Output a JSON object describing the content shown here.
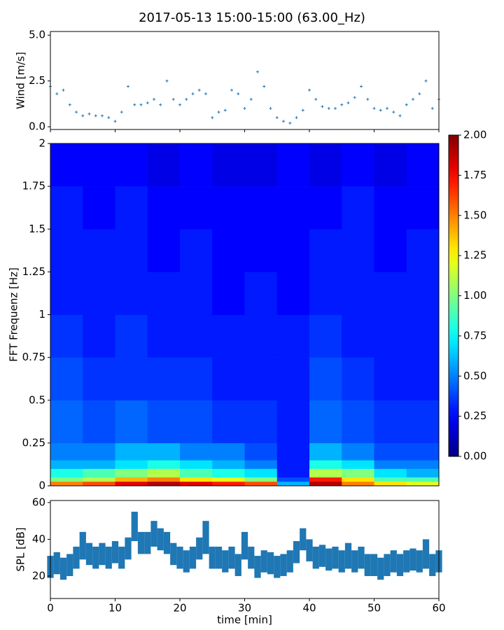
{
  "title": "2017-05-13 15:00-15:00 (63.00_Hz)",
  "chart_data": [
    {
      "type": "scatter",
      "ylabel": "Wind [m/s]",
      "color": "#1f77b4",
      "xlim": [
        0,
        60
      ],
      "ylim": [
        -0.15,
        5.2
      ],
      "yticks": [
        {
          "value": 0,
          "label": "0.0"
        },
        {
          "value": 2.5,
          "label": "2.5"
        },
        {
          "value": 5,
          "label": "5.0"
        }
      ],
      "x": [
        0,
        1,
        2,
        3,
        4,
        5,
        6,
        7,
        8,
        9,
        10,
        11,
        12,
        13,
        14,
        15,
        16,
        17,
        18,
        19,
        20,
        21,
        22,
        23,
        24,
        25,
        26,
        27,
        28,
        29,
        30,
        31,
        32,
        33,
        34,
        35,
        36,
        37,
        38,
        39,
        40,
        41,
        42,
        43,
        44,
        45,
        46,
        47,
        48,
        49,
        50,
        51,
        52,
        53,
        54,
        55,
        56,
        57,
        58,
        59,
        60
      ],
      "values": [
        2.2,
        1.8,
        2.0,
        1.2,
        0.8,
        0.6,
        0.7,
        0.6,
        0.6,
        0.5,
        0.3,
        0.8,
        2.2,
        1.2,
        1.2,
        1.3,
        1.5,
        1.2,
        2.5,
        1.5,
        1.2,
        1.5,
        1.8,
        2.0,
        1.8,
        0.5,
        0.8,
        0.9,
        2.0,
        1.8,
        1.0,
        1.5,
        3.0,
        2.2,
        1.0,
        0.5,
        0.3,
        0.2,
        0.5,
        0.9,
        2.0,
        1.5,
        1.1,
        1.0,
        1.0,
        1.2,
        1.3,
        1.6,
        2.2,
        1.5,
        1.0,
        0.9,
        1.0,
        0.8,
        0.6,
        1.2,
        1.5,
        1.8,
        2.5,
        1.0,
        1.5
      ]
    },
    {
      "type": "heatmap",
      "ylabel": "FFT Frequenz [Hz]",
      "xlim": [
        0,
        60
      ],
      "ylim": [
        0,
        2
      ],
      "yticks": [
        0,
        0.25,
        0.5,
        0.75,
        1,
        1.25,
        1.5,
        1.75,
        2
      ],
      "xbins": [
        0,
        5,
        10,
        15,
        20,
        25,
        30,
        35,
        40,
        45,
        50,
        55,
        60
      ],
      "ybins": [
        0,
        0.025,
        0.05,
        0.1,
        0.15,
        0.25,
        0.5,
        0.75,
        1,
        1.25,
        1.5,
        1.75,
        2
      ],
      "z": [
        [
          1.5,
          1.6,
          1.8,
          1.9,
          1.8,
          1.7,
          1.6,
          0.6,
          1.9,
          1.5,
          1.3,
          1.2
        ],
        [
          1.0,
          1.1,
          1.4,
          1.5,
          1.3,
          1.2,
          1.0,
          0.4,
          1.7,
          1.3,
          0.9,
          0.9
        ],
        [
          0.8,
          0.9,
          1.0,
          1.1,
          0.9,
          0.8,
          0.7,
          0.3,
          1.1,
          1.0,
          0.7,
          0.6
        ],
        [
          0.6,
          0.6,
          0.7,
          0.8,
          0.7,
          0.6,
          0.5,
          0.3,
          0.8,
          0.7,
          0.5,
          0.5
        ],
        [
          0.5,
          0.5,
          0.6,
          0.6,
          0.5,
          0.5,
          0.4,
          0.3,
          0.6,
          0.5,
          0.4,
          0.4
        ],
        [
          0.45,
          0.4,
          0.45,
          0.4,
          0.4,
          0.35,
          0.35,
          0.3,
          0.45,
          0.4,
          0.35,
          0.35
        ],
        [
          0.4,
          0.35,
          0.35,
          0.35,
          0.35,
          0.3,
          0.3,
          0.3,
          0.4,
          0.35,
          0.3,
          0.3
        ],
        [
          0.35,
          0.3,
          0.35,
          0.3,
          0.3,
          0.3,
          0.3,
          0.3,
          0.35,
          0.3,
          0.3,
          0.3
        ],
        [
          0.3,
          0.3,
          0.3,
          0.3,
          0.3,
          0.25,
          0.3,
          0.25,
          0.3,
          0.3,
          0.3,
          0.3
        ],
        [
          0.3,
          0.3,
          0.3,
          0.25,
          0.3,
          0.25,
          0.25,
          0.25,
          0.3,
          0.3,
          0.25,
          0.3
        ],
        [
          0.3,
          0.25,
          0.3,
          0.25,
          0.25,
          0.25,
          0.25,
          0.25,
          0.25,
          0.3,
          0.25,
          0.25
        ],
        [
          0.25,
          0.25,
          0.25,
          0.2,
          0.25,
          0.2,
          0.2,
          0.25,
          0.2,
          0.25,
          0.2,
          0.25
        ]
      ],
      "clim": [
        0,
        2
      ],
      "cticks": [
        {
          "value": 0,
          "label": "0.00"
        },
        {
          "value": 0.25,
          "label": "0.25"
        },
        {
          "value": 0.5,
          "label": "0.50"
        },
        {
          "value": 0.75,
          "label": "0.75"
        },
        {
          "value": 1,
          "label": "1.00"
        },
        {
          "value": 1.25,
          "label": "1.25"
        },
        {
          "value": 1.5,
          "label": "1.50"
        },
        {
          "value": 1.75,
          "label": "1.75"
        },
        {
          "value": 2,
          "label": "2.00"
        }
      ],
      "colormap": "jet"
    },
    {
      "type": "band",
      "ylabel": "SPL [dB]",
      "xlabel": "time [min]",
      "color": "#1f77b4",
      "xlim": [
        0,
        60
      ],
      "xticks": [
        0,
        10,
        20,
        30,
        40,
        50,
        60
      ],
      "ylim": [
        7.8,
        61.1
      ],
      "yticks": [
        20,
        40,
        60
      ],
      "x": [
        0,
        1,
        2,
        3,
        4,
        5,
        6,
        7,
        8,
        9,
        10,
        11,
        12,
        13,
        14,
        15,
        16,
        17,
        18,
        19,
        20,
        21,
        22,
        23,
        24,
        25,
        26,
        27,
        28,
        29,
        30,
        31,
        32,
        33,
        34,
        35,
        36,
        37,
        38,
        39,
        40,
        41,
        42,
        43,
        44,
        45,
        46,
        47,
        48,
        49,
        50,
        51,
        52,
        53,
        54,
        55,
        56,
        57,
        58,
        59,
        60
      ],
      "lower": [
        19,
        21,
        18,
        20,
        24,
        29,
        26,
        24,
        26,
        24,
        27,
        24,
        29,
        39,
        32,
        32,
        36,
        34,
        32,
        26,
        24,
        22,
        24,
        29,
        32,
        24,
        24,
        22,
        24,
        20,
        29,
        24,
        19,
        22,
        21,
        19,
        20,
        22,
        27,
        34,
        28,
        24,
        25,
        23,
        24,
        22,
        24,
        22,
        24,
        20,
        20,
        18,
        20,
        22,
        20,
        22,
        23,
        22,
        24,
        20,
        22
      ],
      "upper": [
        31,
        33,
        30,
        32,
        36,
        44,
        38,
        36,
        38,
        36,
        39,
        36,
        41,
        55,
        44,
        44,
        50,
        46,
        44,
        38,
        36,
        34,
        36,
        41,
        50,
        36,
        36,
        34,
        36,
        32,
        44,
        36,
        31,
        34,
        33,
        31,
        32,
        34,
        39,
        46,
        40,
        36,
        37,
        35,
        36,
        34,
        38,
        34,
        36,
        32,
        32,
        30,
        32,
        34,
        32,
        34,
        35,
        34,
        40,
        32,
        34
      ]
    }
  ]
}
